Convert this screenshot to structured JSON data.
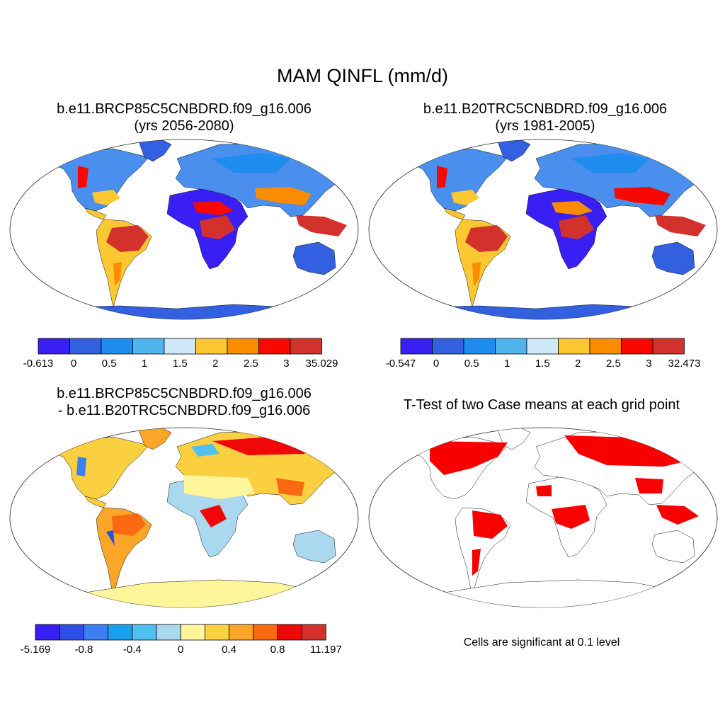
{
  "title": "MAM QINFL (mm/d)",
  "panels": [
    {
      "id": "p1",
      "title_line1": "b.e11.BRCP85C5CNBDRD.f09_g16.006",
      "title_line2": "(yrs 2056-2080)",
      "colorbar": {
        "labels": [
          "-0.613",
          "0",
          "0.5",
          "1",
          "1.5",
          "2",
          "2.5",
          "3",
          "35.029"
        ],
        "colors": [
          "#3a1ff5",
          "#3360e0",
          "#1f8cf0",
          "#4fb4ec",
          "#cfe8f7",
          "#fbc832",
          "#fb8c00",
          "#f80800",
          "#d2322b"
        ]
      }
    },
    {
      "id": "p2",
      "title_line1": "b.e11.B20TRC5CNBDRD.f09_g16.006",
      "title_line2": "(yrs 1981-2005)",
      "colorbar": {
        "labels": [
          "-0.547",
          "0",
          "0.5",
          "1",
          "1.5",
          "2",
          "2.5",
          "3",
          "32.473"
        ],
        "colors": [
          "#3a1ff5",
          "#3360e0",
          "#1f8cf0",
          "#4fb4ec",
          "#cfe8f7",
          "#fbc832",
          "#fb8c00",
          "#f80800",
          "#d2322b"
        ]
      }
    },
    {
      "id": "p3",
      "title_line1": "b.e11.BRCP85C5CNBDRD.f09_g16.006",
      "title_line2": "- b.e11.B20TRC5CNBDRD.f09_g16.006",
      "colorbar": {
        "labels": [
          "-5.169",
          "-0.8",
          "-0.4",
          "0",
          "0.4",
          "0.8",
          "11.197"
        ],
        "colors": [
          "#3a1ff5",
          "#2e4fe6",
          "#3b7ff0",
          "#1aa0f0",
          "#4fc0f0",
          "#a9d8ef",
          "#fff59a",
          "#fbd040",
          "#fba628",
          "#fb6a10",
          "#f00808",
          "#d2322b"
        ]
      }
    },
    {
      "id": "p4",
      "title_line1": "T-Test of two Case means at each grid point",
      "note": "Cells are significant at 0.1 level",
      "sig_color": "#f80000"
    }
  ]
}
